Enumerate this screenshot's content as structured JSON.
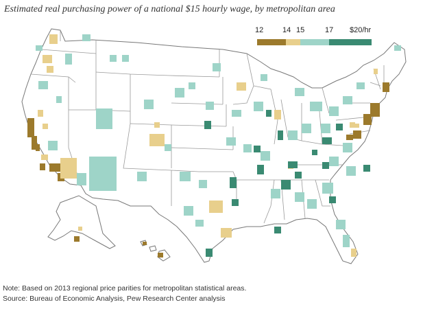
{
  "title": "Estimated real purchasing power of a national $15 hourly wage, by metropolitan area",
  "legend": {
    "labels": [
      "12",
      "14",
      "15",
      "17",
      "$20/hr"
    ],
    "bins": [
      {
        "from": 12,
        "to": 14,
        "color": "#9c7a2c"
      },
      {
        "from": 14,
        "to": 15,
        "color": "#e8cf8c"
      },
      {
        "from": 15,
        "to": 17,
        "color": "#9ed4c8"
      },
      {
        "from": 17,
        "to": 20,
        "color": "#3a8a72"
      }
    ]
  },
  "colors": {
    "dark_gold": "#9c7a2c",
    "light_gold": "#e8cf8c",
    "light_teal": "#9ed4c8",
    "dark_teal": "#3a8a72",
    "borders": "#777777"
  },
  "notes": {
    "note": "Note: Based on 2013 regional price parities for metropolitan statistical areas.",
    "source": "Source: Bureau of Economic Analysis, Pew Research Center analysis"
  }
}
